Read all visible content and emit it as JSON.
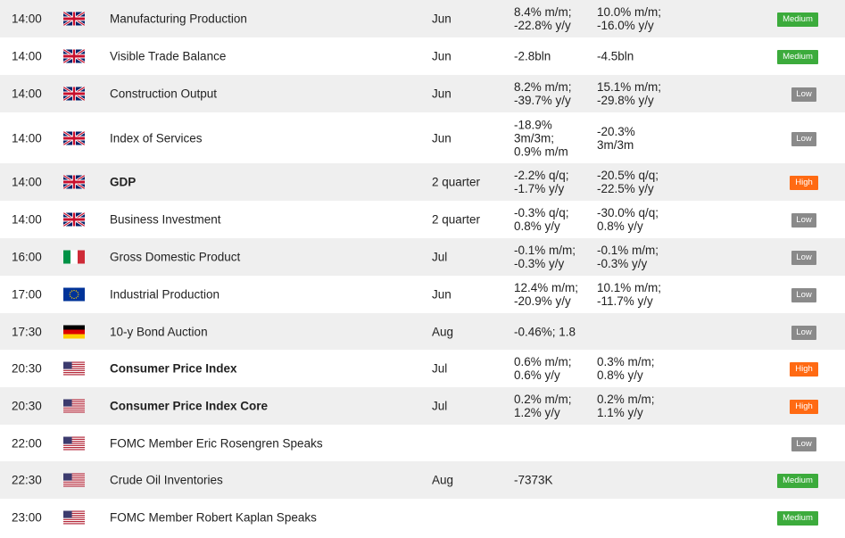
{
  "rows": [
    {
      "time": "14:00",
      "country": "uk",
      "event": "Manufacturing Production",
      "bold": false,
      "period": "Jun",
      "actual": [
        "8.4% m/m;",
        "-22.8% y/y"
      ],
      "previous": [
        "10.0% m/m;",
        "-16.0% y/y"
      ],
      "importance": "Medium",
      "h": 42
    },
    {
      "time": "14:00",
      "country": "uk",
      "event": "Visible Trade Balance",
      "bold": false,
      "period": "Jun",
      "actual": [
        "-2.8bln"
      ],
      "previous": [
        "-4.5bln"
      ],
      "importance": "Medium",
      "h": 42
    },
    {
      "time": "14:00",
      "country": "uk",
      "event": "Construction Output",
      "bold": false,
      "period": "Jun",
      "actual": [
        "8.2% m/m;",
        "-39.7% y/y"
      ],
      "previous": [
        "15.1% m/m;",
        "-29.8% y/y"
      ],
      "importance": "Low",
      "h": 42
    },
    {
      "time": "14:00",
      "country": "uk",
      "event": "Index of Services",
      "bold": false,
      "period": "Jun",
      "actual": [
        "-18.9%",
        "3m/3m;",
        "0.9% m/m"
      ],
      "previous": [
        "-20.3%",
        "3m/3m"
      ],
      "importance": "Low",
      "h": 57
    },
    {
      "time": "14:00",
      "country": "uk",
      "event": "GDP",
      "bold": true,
      "period": "2 quarter",
      "actual": [
        "-2.2% q/q;",
        "-1.7% y/y"
      ],
      "previous": [
        "-20.5% q/q;",
        "-22.5% y/y"
      ],
      "importance": "High",
      "h": 42
    },
    {
      "time": "14:00",
      "country": "uk",
      "event": "Business Investment",
      "bold": false,
      "period": "2 quarter",
      "actual": [
        "-0.3% q/q;",
        "0.8% y/y"
      ],
      "previous": [
        "-30.0% q/q;",
        "0.8% y/y"
      ],
      "importance": "Low",
      "h": 42
    },
    {
      "time": "16:00",
      "country": "it",
      "event": "Gross Domestic Product",
      "bold": false,
      "period": "Jul",
      "actual": [
        "-0.1% m/m;",
        "-0.3% y/y"
      ],
      "previous": [
        "-0.1% m/m;",
        "-0.3% y/y"
      ],
      "importance": "Low",
      "h": 42
    },
    {
      "time": "17:00",
      "country": "eu",
      "event": "Industrial Production",
      "bold": false,
      "period": "Jun",
      "actual": [
        "12.4% m/m;",
        "-20.9% y/y"
      ],
      "previous": [
        "10.1% m/m;",
        "-11.7% y/y"
      ],
      "importance": "Low",
      "h": 42
    },
    {
      "time": "17:30",
      "country": "de",
      "event": "10-y Bond Auction",
      "bold": false,
      "period": "Aug",
      "actual": [
        "-0.46%; 1.8"
      ],
      "previous": [],
      "importance": "Low",
      "h": 41
    },
    {
      "time": "20:30",
      "country": "us",
      "event": "Consumer Price Index",
      "bold": true,
      "period": "Jul",
      "actual": [
        "0.6% m/m;",
        "0.6% y/y"
      ],
      "previous": [
        "0.3% m/m;",
        "0.8% y/y"
      ],
      "importance": "High",
      "h": 42
    },
    {
      "time": "20:30",
      "country": "us",
      "event": "Consumer Price Index Core",
      "bold": true,
      "period": "Jul",
      "actual": [
        "0.2% m/m;",
        "1.2% y/y"
      ],
      "previous": [
        "0.2% m/m;",
        "1.1% y/y"
      ],
      "importance": "High",
      "h": 42
    },
    {
      "time": "22:00",
      "country": "us",
      "event": "FOMC Member Eric Rosengren Speaks",
      "bold": false,
      "period": "",
      "actual": [],
      "previous": [],
      "importance": "Low",
      "h": 41
    },
    {
      "time": "22:30",
      "country": "us",
      "event": "Crude Oil Inventories",
      "bold": false,
      "period": "Aug",
      "actual": [
        "-7373K"
      ],
      "previous": [],
      "importance": "Medium",
      "h": 42
    },
    {
      "time": "23:00",
      "country": "us",
      "event": "FOMC Member Robert Kaplan Speaks",
      "bold": false,
      "period": "",
      "actual": [],
      "previous": [],
      "importance": "Medium",
      "h": 42
    }
  ],
  "colors": {
    "medium": "#3cab3c",
    "low": "#8a8a8a",
    "high": "#ff6a13",
    "row_alt": "#efefef"
  }
}
